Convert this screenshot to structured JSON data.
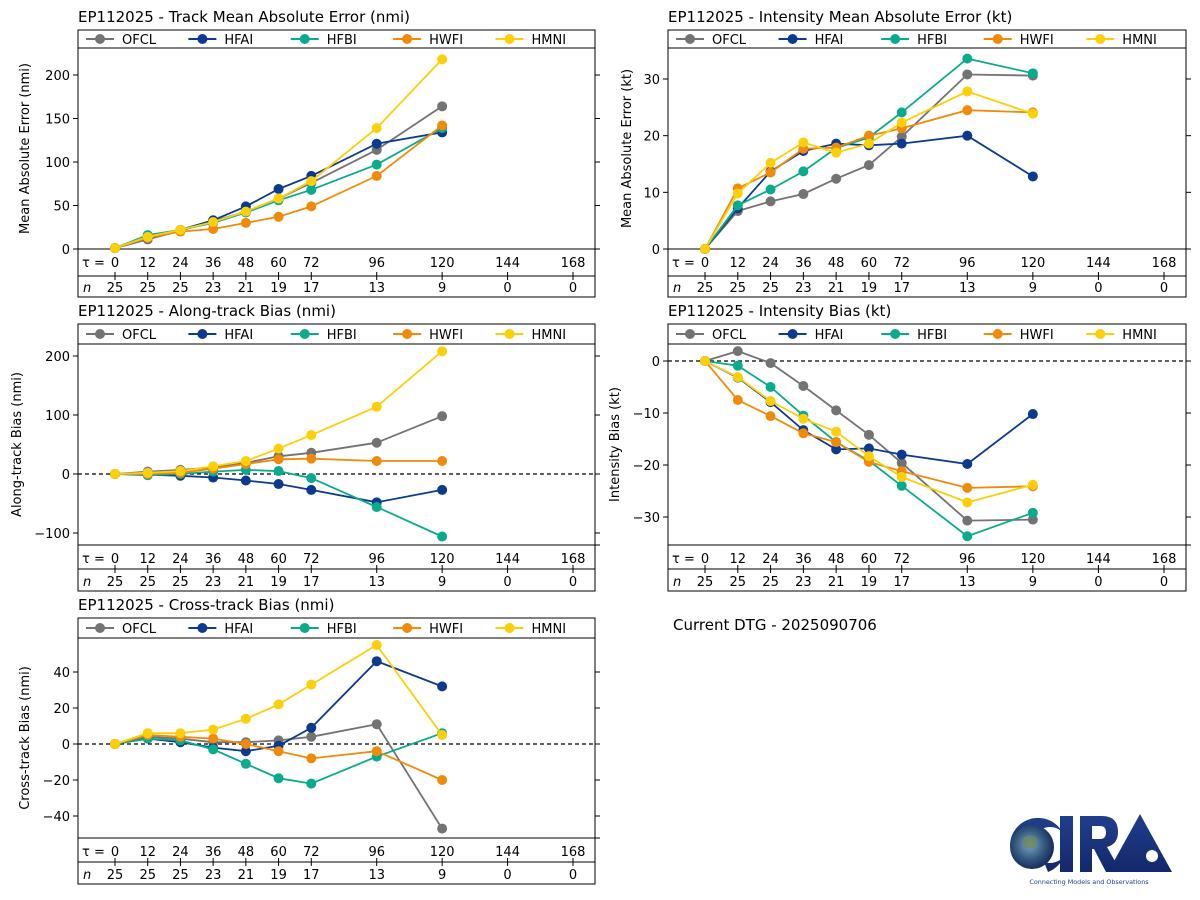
{
  "storm_id": "EP112025",
  "current_dtg_label": "Current DTG - 2025090706",
  "logo": {
    "text": "CIRA",
    "tagline": "Connecting Models and Observations"
  },
  "models": [
    {
      "name": "OFCL",
      "color": "#737373"
    },
    {
      "name": "HFAI",
      "color": "#0b3a8f"
    },
    {
      "name": "HFBI",
      "color": "#0aab8c"
    },
    {
      "name": "HWFI",
      "color": "#f08a0b"
    },
    {
      "name": "HMNI",
      "color": "#fccf0b"
    }
  ],
  "tau_label": "τ = ",
  "n_label": "n",
  "chart_data": [
    {
      "id": "track-mae",
      "type": "line",
      "title": "EP112025 - Track Mean Absolute Error (nmi)",
      "ylabel": "Mean Absolute Error (nmi)",
      "ylim": [
        0,
        230
      ],
      "yticks": [
        0,
        50,
        100,
        150,
        200
      ],
      "zero_line": false,
      "x_ticks": [
        0,
        12,
        24,
        36,
        48,
        60,
        72,
        96,
        120,
        144,
        168
      ],
      "n_counts": [
        25,
        25,
        25,
        23,
        21,
        19,
        17,
        13,
        9,
        0,
        0
      ],
      "x": [
        0,
        12,
        24,
        36,
        48,
        60,
        72,
        96,
        120
      ],
      "series": [
        {
          "name": "OFCL",
          "values": [
            1,
            11,
            21,
            32,
            43,
            58,
            76,
            114,
            164
          ]
        },
        {
          "name": "HFAI",
          "values": [
            1,
            14,
            22,
            33,
            49,
            69,
            84,
            121,
            134
          ]
        },
        {
          "name": "HFBI",
          "values": [
            1,
            16,
            22,
            30,
            42,
            56,
            68,
            97,
            139
          ]
        },
        {
          "name": "HWFI",
          "values": [
            1,
            13,
            20,
            23,
            30,
            37,
            49,
            84,
            142
          ]
        },
        {
          "name": "HMNI",
          "values": [
            1,
            14,
            22,
            31,
            43,
            58,
            78,
            139,
            218
          ]
        }
      ]
    },
    {
      "id": "intensity-mae",
      "type": "line",
      "title": "EP112025 - Intensity Mean Absolute Error (kt)",
      "ylabel": "Mean Absolute Error (kt)",
      "ylim": [
        0,
        35
      ],
      "yticks": [
        0,
        10,
        20,
        30
      ],
      "zero_line": false,
      "x_ticks": [
        0,
        12,
        24,
        36,
        48,
        60,
        72,
        96,
        120,
        144,
        168
      ],
      "n_counts": [
        25,
        25,
        25,
        23,
        21,
        19,
        17,
        13,
        9,
        0,
        0
      ],
      "x": [
        0,
        12,
        24,
        36,
        48,
        60,
        72,
        96,
        120
      ],
      "series": [
        {
          "name": "OFCL",
          "values": [
            0,
            6.7,
            8.4,
            9.7,
            12.4,
            14.8,
            19.8,
            30.8,
            30.6
          ]
        },
        {
          "name": "HFAI",
          "values": [
            0,
            7.2,
            13.7,
            17.3,
            18.6,
            18.3,
            18.6,
            20.0,
            12.8
          ]
        },
        {
          "name": "HFBI",
          "values": [
            0,
            7.7,
            10.5,
            13.7,
            17.8,
            19.7,
            24.1,
            33.6,
            31.0
          ]
        },
        {
          "name": "HWFI",
          "values": [
            0,
            10.7,
            13.5,
            17.7,
            17.9,
            20.0,
            21.3,
            24.5,
            24.1
          ]
        },
        {
          "name": "HMNI",
          "values": [
            0,
            9.8,
            15.2,
            18.8,
            17.0,
            18.6,
            22.3,
            27.8,
            23.9
          ]
        }
      ]
    },
    {
      "id": "along-track-bias",
      "type": "line",
      "title": "EP112025 - Along-track Bias (nmi)",
      "ylabel": "Along-track Bias (nmi)",
      "ylim": [
        -120,
        220
      ],
      "yticks": [
        -100,
        0,
        100,
        200
      ],
      "zero_line": true,
      "x_ticks": [
        0,
        12,
        24,
        36,
        48,
        60,
        72,
        96,
        120,
        144,
        168
      ],
      "n_counts": [
        25,
        25,
        25,
        23,
        21,
        19,
        17,
        13,
        9,
        0,
        0
      ],
      "x": [
        0,
        12,
        24,
        36,
        48,
        60,
        72,
        96,
        120
      ],
      "series": [
        {
          "name": "OFCL",
          "values": [
            0,
            4,
            7,
            11,
            19,
            30,
            36,
            53,
            98
          ]
        },
        {
          "name": "HFAI",
          "values": [
            0,
            -1,
            -3,
            -6,
            -11,
            -17,
            -27,
            -48,
            -27
          ]
        },
        {
          "name": "HFBI",
          "values": [
            0,
            -2,
            0,
            4,
            7,
            5,
            -7,
            -56,
            -106
          ]
        },
        {
          "name": "HWFI",
          "values": [
            0,
            0,
            2,
            9,
            17,
            25,
            26,
            22,
            22
          ]
        },
        {
          "name": "HMNI",
          "values": [
            0,
            2,
            5,
            13,
            22,
            43,
            66,
            114,
            208
          ]
        }
      ]
    },
    {
      "id": "intensity-bias",
      "type": "line",
      "title": "EP112025 - Intensity Bias (kt)",
      "ylabel": "Intensity Bias (kt)",
      "ylim": [
        -35,
        3.5
      ],
      "yticks": [
        -30,
        -20,
        -10,
        0
      ],
      "zero_line": true,
      "x_ticks": [
        0,
        12,
        24,
        36,
        48,
        60,
        72,
        96,
        120,
        144,
        168
      ],
      "n_counts": [
        25,
        25,
        25,
        23,
        21,
        19,
        17,
        13,
        9,
        0,
        0
      ],
      "x": [
        0,
        12,
        24,
        36,
        48,
        60,
        72,
        96,
        120
      ],
      "series": [
        {
          "name": "OFCL",
          "values": [
            0,
            1.9,
            -0.4,
            -4.8,
            -9.5,
            -14.2,
            -19.6,
            -30.7,
            -30.5
          ]
        },
        {
          "name": "HFAI",
          "values": [
            0,
            -3.2,
            -7.9,
            -13.3,
            -17.0,
            -16.8,
            -18.0,
            -19.8,
            -10.2
          ]
        },
        {
          "name": "HFBI",
          "values": [
            0,
            -0.9,
            -5.0,
            -10.5,
            -15.6,
            -19.2,
            -24.0,
            -33.7,
            -29.2
          ]
        },
        {
          "name": "HWFI",
          "values": [
            0,
            -7.5,
            -10.6,
            -13.9,
            -15.6,
            -19.4,
            -21.2,
            -24.4,
            -24.1
          ]
        },
        {
          "name": "HMNI",
          "values": [
            0,
            -3.1,
            -7.7,
            -11.1,
            -13.6,
            -18.3,
            -22.3,
            -27.2,
            -23.8
          ]
        }
      ]
    },
    {
      "id": "cross-track-bias",
      "type": "line",
      "title": "EP112025 - Cross-track Bias (nmi)",
      "ylabel": "Cross-track Bias (nmi)",
      "ylim": [
        -52,
        58
      ],
      "yticks": [
        -40,
        -20,
        0,
        20,
        40
      ],
      "zero_line": true,
      "x_ticks": [
        0,
        12,
        24,
        36,
        48,
        60,
        72,
        96,
        120,
        144,
        168
      ],
      "n_counts": [
        25,
        25,
        25,
        23,
        21,
        19,
        17,
        13,
        9,
        0,
        0
      ],
      "x": [
        0,
        12,
        24,
        36,
        48,
        60,
        72,
        96,
        120
      ],
      "series": [
        {
          "name": "OFCL",
          "values": [
            0,
            4,
            3,
            1,
            1,
            2,
            4,
            11,
            -47
          ]
        },
        {
          "name": "HFAI",
          "values": [
            0,
            3,
            1,
            -2,
            -4,
            -1,
            9,
            46,
            32
          ]
        },
        {
          "name": "HFBI",
          "values": [
            0,
            3,
            2,
            -3,
            -11,
            -19,
            -22,
            -7,
            6
          ]
        },
        {
          "name": "HWFI",
          "values": [
            0,
            5,
            4,
            3,
            0,
            -4,
            -8,
            -4,
            -20
          ]
        },
        {
          "name": "HMNI",
          "values": [
            0,
            6,
            6,
            8,
            14,
            22,
            33,
            55,
            5
          ]
        }
      ]
    }
  ]
}
